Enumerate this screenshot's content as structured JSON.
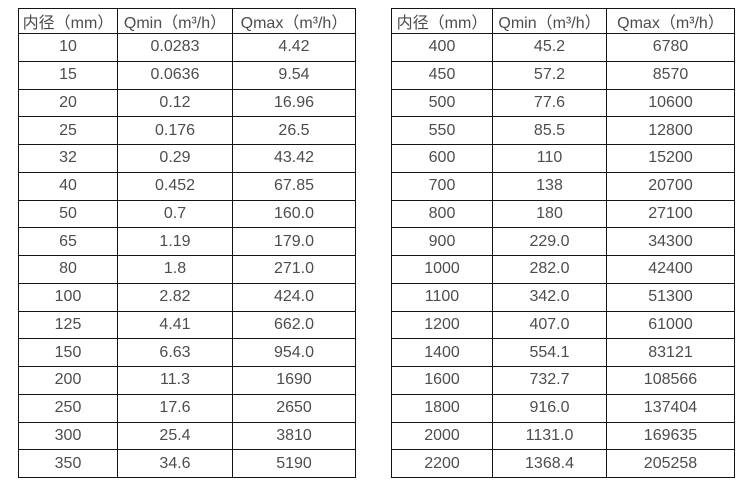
{
  "page": {
    "background_color": "#ffffff",
    "border_color": "#141414",
    "text_color": "#4d4d4d"
  },
  "tables": [
    {
      "name": "flow-table-small-diameters",
      "headers": [
        "内径（mm）",
        "Qmin（m³/h）",
        "Qmax（m³/h）"
      ],
      "rows": [
        [
          "10",
          "0.0283",
          "4.42"
        ],
        [
          "15",
          "0.0636",
          "9.54"
        ],
        [
          "20",
          "0.12",
          "16.96"
        ],
        [
          "25",
          "0.176",
          "26.5"
        ],
        [
          "32",
          "0.29",
          "43.42"
        ],
        [
          "40",
          "0.452",
          "67.85"
        ],
        [
          "50",
          "0.7",
          "160.0"
        ],
        [
          "65",
          "1.19",
          "179.0"
        ],
        [
          "80",
          "1.8",
          "271.0"
        ],
        [
          "100",
          "2.82",
          "424.0"
        ],
        [
          "125",
          "4.41",
          "662.0"
        ],
        [
          "150",
          "6.63",
          "954.0"
        ],
        [
          "200",
          "11.3",
          "1690"
        ],
        [
          "250",
          "17.6",
          "2650"
        ],
        [
          "300",
          "25.4",
          "3810"
        ],
        [
          "350",
          "34.6",
          "5190"
        ]
      ]
    },
    {
      "name": "flow-table-large-diameters",
      "headers": [
        "内径（mm）",
        "Qmin（m³/h）",
        "Qmax（m³/h）"
      ],
      "rows": [
        [
          "400",
          "45.2",
          "6780"
        ],
        [
          "450",
          "57.2",
          "8570"
        ],
        [
          "500",
          "77.6",
          "10600"
        ],
        [
          "550",
          "85.5",
          "12800"
        ],
        [
          "600",
          "110",
          "15200"
        ],
        [
          "700",
          "138",
          "20700"
        ],
        [
          "800",
          "180",
          "27100"
        ],
        [
          "900",
          "229.0",
          "34300"
        ],
        [
          "1000",
          "282.0",
          "42400"
        ],
        [
          "1100",
          "342.0",
          "51300"
        ],
        [
          "1200",
          "407.0",
          "61000"
        ],
        [
          "1400",
          "554.1",
          "83121"
        ],
        [
          "1600",
          "732.7",
          "108566"
        ],
        [
          "1800",
          "916.0",
          "137404"
        ],
        [
          "2000",
          "1131.0",
          "169635"
        ],
        [
          "2200",
          "1368.4",
          "205258"
        ]
      ]
    }
  ]
}
